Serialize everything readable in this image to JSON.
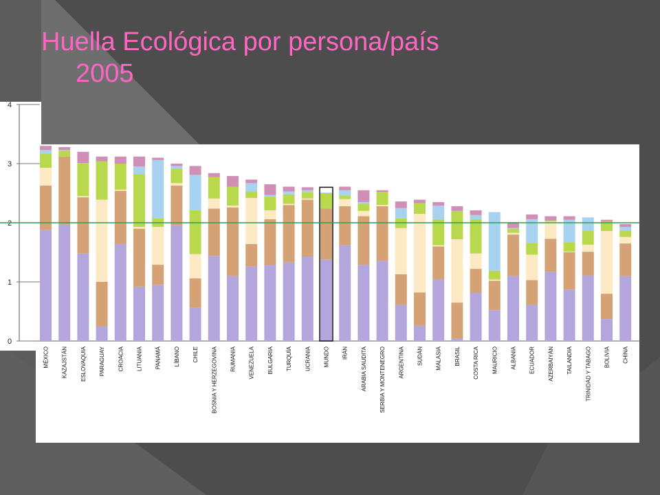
{
  "slide": {
    "title_line1": "Huella Ecológica por persona/país",
    "title_line2": "2005"
  },
  "colors": {
    "background": "#4d4d4d",
    "title": "#ff66c4",
    "reference_line": "#2e9e54",
    "highlight_border": "#111111"
  },
  "chart_data": {
    "type": "bar",
    "stacked": true,
    "ylim": [
      0,
      4
    ],
    "yticks": [
      "0",
      "1",
      "2",
      "3",
      "4"
    ],
    "reference_line": 2.0,
    "highlighted_category": "MUNDO",
    "series_colors": [
      "#b3a6dc",
      "#d4a275",
      "#fde9c4",
      "#b9d84c",
      "#a7d2f0",
      "#d08fb5"
    ],
    "categories": [
      "MÉXICO",
      "KAZAJSTÁN",
      "ESLOVAQUIA",
      "PARAGUAY",
      "CROACIA",
      "LITUANIA",
      "PANAMÁ",
      "LÍBANO",
      "CHILE",
      "BOSNIA Y HERZEGOVINA",
      "RUMANIA",
      "VENEZUELA",
      "BULGARIA",
      "TURQUÍA",
      "UCRANIA",
      "MUNDO",
      "IRÁN",
      "ARABIA SAUDITA",
      "SERBIA Y MONTENEGRO",
      "ARGENTINA",
      "SUDÁN",
      "MALASIA",
      "BRASIL",
      "COSTA RICA",
      "MAURICIO",
      "ALBANIA",
      "ECUADOR",
      "AZERBAIYÁN",
      "TAILANDIA",
      "TRINIDAD Y TABAGO",
      "BOLIVIA",
      "CHINA"
    ],
    "series": [
      {
        "values": [
          1.88,
          1.97,
          1.48,
          0.25,
          1.64,
          0.92,
          0.95,
          1.95,
          0.56,
          1.44,
          1.1,
          1.26,
          1.28,
          1.33,
          1.43,
          1.38,
          1.62,
          1.29,
          1.35,
          0.61,
          0.26,
          1.04,
          0.04,
          0.82,
          0.52,
          1.1,
          0.61,
          1.17,
          0.87,
          1.11,
          0.37,
          1.1
        ]
      },
      {
        "values": [
          0.75,
          1.15,
          0.95,
          0.75,
          0.9,
          0.98,
          0.34,
          0.68,
          0.5,
          0.8,
          1.16,
          0.38,
          0.78,
          0.97,
          0.96,
          0.86,
          0.66,
          0.82,
          0.93,
          0.52,
          0.56,
          0.56,
          0.61,
          0.4,
          0.5,
          0.7,
          0.42,
          0.56,
          0.63,
          0.4,
          0.43,
          0.55
        ]
      },
      {
        "values": [
          0.3,
          0.0,
          0.02,
          1.39,
          0.02,
          0.03,
          0.64,
          0.04,
          0.41,
          0.17,
          0.03,
          0.78,
          0.15,
          0.02,
          0.02,
          0.0,
          0.12,
          0.09,
          0.02,
          0.78,
          1.33,
          0.02,
          1.07,
          0.26,
          0.02,
          0.03,
          0.43,
          0.29,
          0.01,
          0.12,
          1.06,
          0.11
        ]
      },
      {
        "values": [
          0.24,
          0.1,
          0.56,
          0.65,
          0.44,
          0.89,
          0.14,
          0.25,
          0.74,
          0.36,
          0.32,
          0.11,
          0.23,
          0.16,
          0.11,
          0.26,
          0.06,
          0.12,
          0.22,
          0.16,
          0.18,
          0.44,
          0.48,
          0.58,
          0.15,
          0.07,
          0.2,
          0.02,
          0.16,
          0.23,
          0.16,
          0.1
        ]
      },
      {
        "values": [
          0.06,
          0.01,
          0.0,
          0.0,
          0.0,
          0.13,
          0.99,
          0.04,
          0.6,
          0.0,
          0.0,
          0.14,
          0.03,
          0.05,
          0.03,
          0.01,
          0.09,
          0.03,
          0.0,
          0.18,
          0.0,
          0.23,
          0.0,
          0.07,
          0.99,
          0.01,
          0.4,
          0.0,
          0.38,
          0.23,
          0.0,
          0.07
        ]
      },
      {
        "values": [
          0.07,
          0.05,
          0.19,
          0.08,
          0.12,
          0.17,
          0.04,
          0.04,
          0.15,
          0.07,
          0.18,
          0.06,
          0.18,
          0.08,
          0.05,
          0.0,
          0.06,
          0.2,
          0.03,
          0.11,
          0.06,
          0.06,
          0.08,
          0.08,
          0.0,
          0.1,
          0.08,
          0.07,
          0.06,
          0.0,
          0.03,
          0.05
        ]
      }
    ]
  }
}
